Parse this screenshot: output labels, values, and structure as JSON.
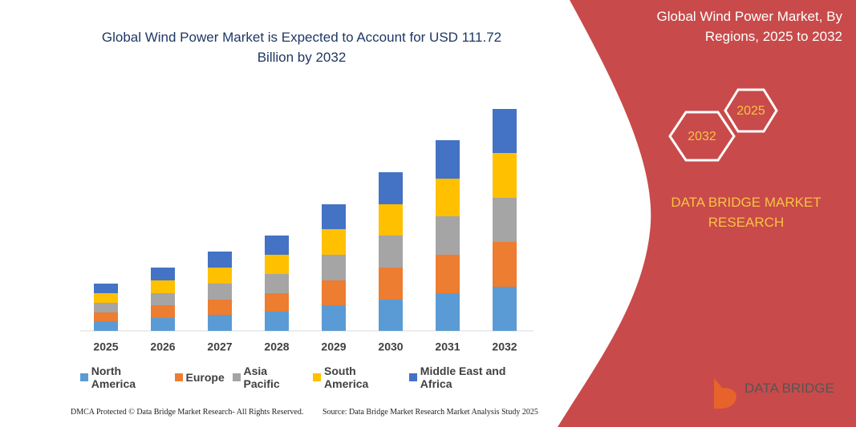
{
  "chart_data": {
    "type": "stacked-bar",
    "title": "Global Wind Power Market is Expected to Account for USD 111.72 Billion by 2032",
    "categories": [
      "2025",
      "2026",
      "2027",
      "2028",
      "2029",
      "2030",
      "2031",
      "2032"
    ],
    "series": [
      {
        "name": "North America",
        "color": "#5b9bd5",
        "values": [
          12,
          16,
          20,
          24,
          32,
          39,
          47,
          55
        ]
      },
      {
        "name": "Europe",
        "color": "#ed7d31",
        "values": [
          11,
          16,
          19,
          23,
          31,
          40,
          48,
          56
        ]
      },
      {
        "name": "Asia Pacific",
        "color": "#a5a5a5",
        "values": [
          12,
          15,
          20,
          24,
          32,
          40,
          48,
          55
        ]
      },
      {
        "name": "South America",
        "color": "#ffc000",
        "values": [
          12,
          16,
          20,
          24,
          32,
          39,
          47,
          56
        ]
      },
      {
        "name": "Middle East and Africa",
        "color": "#4472c4",
        "values": [
          12,
          16,
          20,
          24,
          31,
          40,
          48,
          55
        ]
      }
    ]
  },
  "panel": {
    "title": "Global Wind Power Market, By Regions, 2025 to 2032",
    "hex_labels": [
      "2025",
      "2032"
    ],
    "brand": "DATA BRIDGE MARKET RESEARCH",
    "logo": "DATA BRIDGE"
  },
  "footer": {
    "left": "DMCA Protected © Data Bridge Market Research- All Rights Reserved.",
    "right": "Source: Data Bridge Market Research Market Analysis Study 2025"
  }
}
